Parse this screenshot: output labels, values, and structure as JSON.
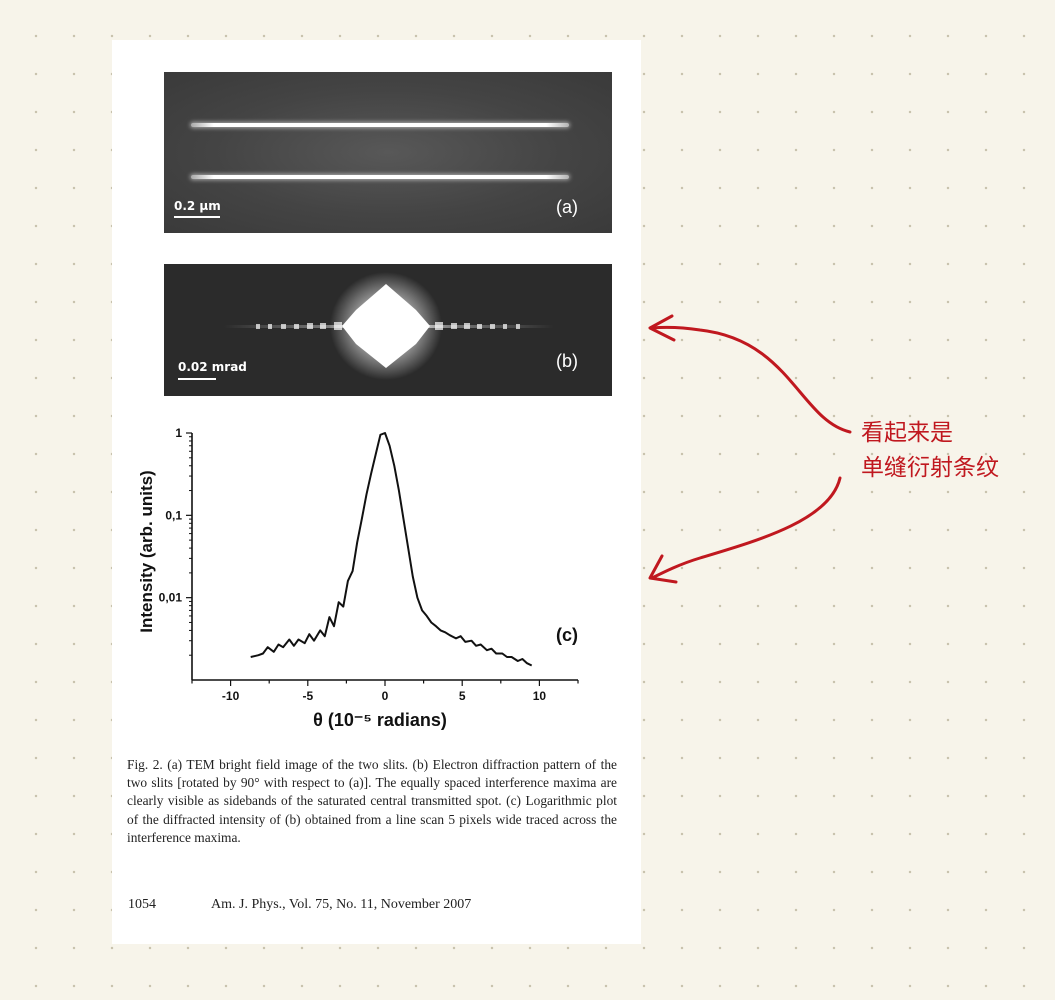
{
  "figure": {
    "panel_a": {
      "label": "(a)",
      "scale_text": "0.2 µm"
    },
    "panel_b": {
      "label": "(b)",
      "scale_text": "0.02 mrad"
    },
    "panel_c": {
      "label": "(c)"
    }
  },
  "chart_data": {
    "type": "line",
    "title": "",
    "xlabel": "θ (10⁻⁵ radians)",
    "ylabel": "Intensity (arb. units)",
    "yscale": "log",
    "xlim": [
      -12.5,
      12.5
    ],
    "ylim": [
      0.001,
      1
    ],
    "xticks": [
      -10,
      -5,
      0,
      5,
      10
    ],
    "xtick_labels": [
      "-10",
      "-5",
      "0",
      "5",
      "10"
    ],
    "yticks": [
      1,
      0.1,
      0.01
    ],
    "ytick_labels": [
      "1",
      "0,1",
      "0,01"
    ],
    "series": [
      {
        "name": "",
        "color": "#111111",
        "x": [
          -8.7,
          -8.2,
          -7.9,
          -7.6,
          -7.2,
          -6.9,
          -6.6,
          -6.2,
          -5.9,
          -5.6,
          -5.2,
          -4.9,
          -4.6,
          -4.2,
          -3.9,
          -3.6,
          -3.3,
          -3.0,
          -2.7,
          -2.4,
          -2.1,
          -1.8,
          -1.5,
          -1.2,
          -0.9,
          -0.6,
          -0.3,
          0.0,
          0.3,
          0.6,
          0.9,
          1.2,
          1.5,
          1.8,
          2.1,
          2.4,
          2.7,
          3.0,
          3.3,
          3.6,
          3.9,
          4.2,
          4.6,
          4.9,
          5.2,
          5.6,
          5.9,
          6.2,
          6.6,
          6.9,
          7.2,
          7.6,
          7.9,
          8.2,
          8.6,
          8.9,
          9.2,
          9.5
        ],
        "y": [
          0.0019,
          0.002,
          0.0021,
          0.0025,
          0.0022,
          0.0027,
          0.0025,
          0.0031,
          0.0026,
          0.0031,
          0.0028,
          0.0036,
          0.003,
          0.004,
          0.0034,
          0.0058,
          0.0045,
          0.0088,
          0.0078,
          0.016,
          0.021,
          0.047,
          0.09,
          0.18,
          0.32,
          0.55,
          0.95,
          1.0,
          0.7,
          0.4,
          0.2,
          0.09,
          0.04,
          0.018,
          0.01,
          0.007,
          0.006,
          0.005,
          0.0045,
          0.004,
          0.0038,
          0.0035,
          0.0032,
          0.0034,
          0.0029,
          0.003,
          0.0026,
          0.0027,
          0.0023,
          0.0024,
          0.0021,
          0.0021,
          0.0019,
          0.0019,
          0.0017,
          0.0018,
          0.0016,
          0.0015
        ]
      }
    ]
  },
  "caption": "Fig. 2. (a) TEM bright field image of the two slits. (b) Electron diffraction pattern of the two slits [rotated by 90° with respect to (a)]. The equally spaced interference maxima are clearly visible as sidebands of the saturated central transmitted spot. (c) Logarithmic plot of the diffracted intensity of (b) obtained from a line scan 5 pixels wide traced across the interference maxima.",
  "footer": {
    "page": "1054",
    "journal": "Am. J. Phys., Vol. 75, No. 11, November 2007"
  },
  "annotation": {
    "line1": "看起来是",
    "line2": "单缝衍射条纹",
    "color": "#c0181f"
  }
}
